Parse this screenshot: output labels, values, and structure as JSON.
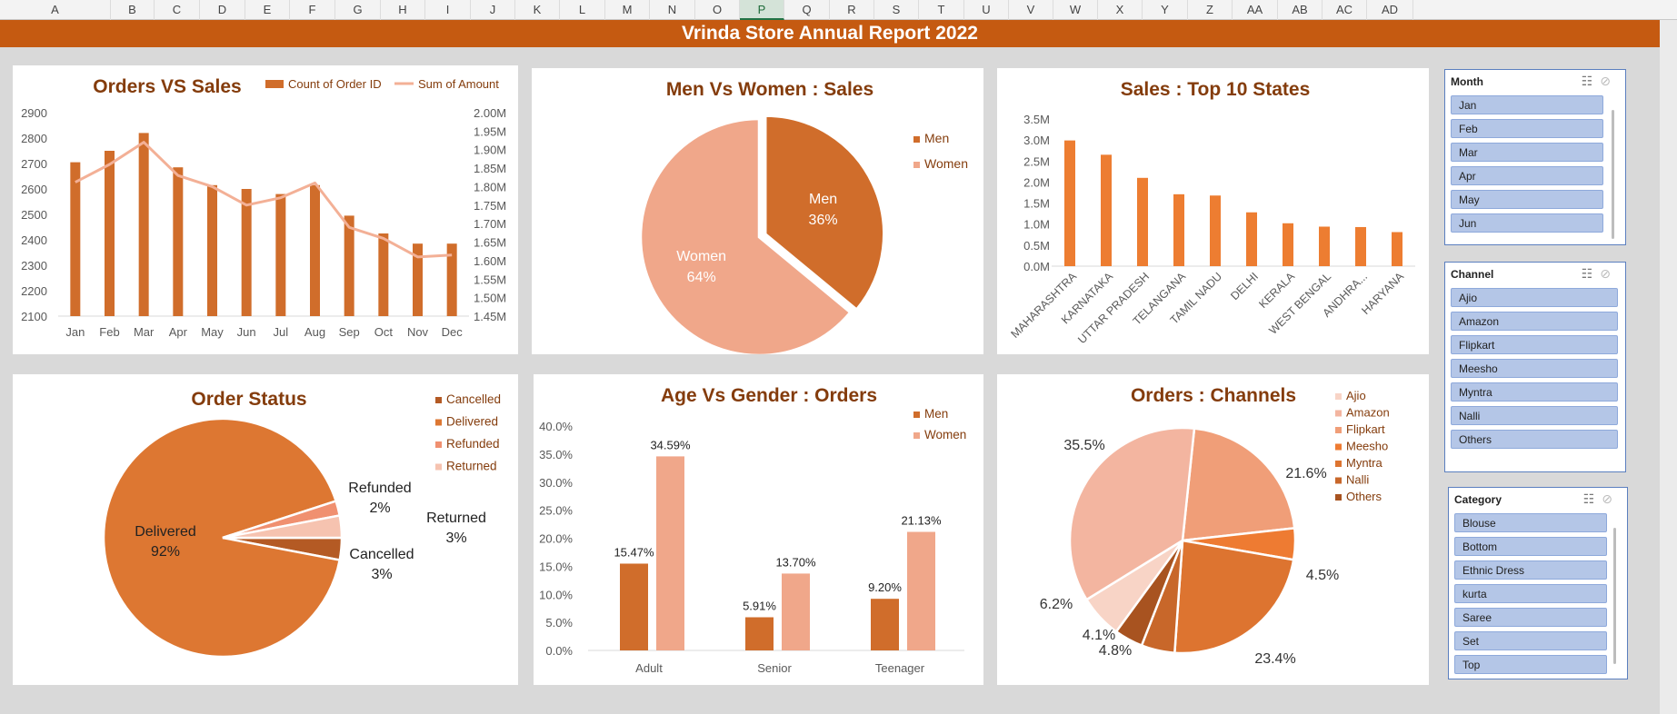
{
  "columns": [
    "A",
    "B",
    "C",
    "D",
    "E",
    "F",
    "G",
    "H",
    "I",
    "J",
    "K",
    "L",
    "M",
    "N",
    "O",
    "P",
    "Q",
    "R",
    "S",
    "T",
    "U",
    "V",
    "W",
    "X",
    "Y",
    "Z",
    "AA",
    "AB",
    "AC",
    "AD"
  ],
  "active_column": "P",
  "title": "Vrinda Store Annual Report 2022",
  "theme": {
    "orange": "#d06d2b",
    "light": "#f0a78a",
    "line": "#f3b096",
    "text_title": "#843c0c"
  },
  "chart_data": [
    {
      "type": "bar",
      "title": "Orders VS Sales",
      "categories": [
        "Jan",
        "Feb",
        "Mar",
        "Apr",
        "May",
        "Jun",
        "Jul",
        "Aug",
        "Sep",
        "Oct",
        "Nov",
        "Dec"
      ],
      "series": [
        {
          "name": "Count of Order ID",
          "type": "bar",
          "values": [
            2705,
            2750,
            2820,
            2685,
            2615,
            2600,
            2580,
            2615,
            2495,
            2425,
            2385,
            2385
          ]
        },
        {
          "name": "Sum of Amount",
          "type": "line",
          "axis": "secondary",
          "values": [
            1.812,
            1.86,
            1.92,
            1.83,
            1.8,
            1.75,
            1.77,
            1.81,
            1.69,
            1.66,
            1.61,
            1.615
          ]
        }
      ],
      "y_ticks": [
        "2100",
        "2200",
        "2300",
        "2400",
        "2500",
        "2600",
        "2700",
        "2800",
        "2900"
      ],
      "y2_ticks": [
        "1.45M",
        "1.50M",
        "1.55M",
        "1.60M",
        "1.65M",
        "1.70M",
        "1.75M",
        "1.80M",
        "1.85M",
        "1.90M",
        "1.95M",
        "2.00M"
      ],
      "ylim": [
        2100,
        2900
      ],
      "y2lim": [
        1.45,
        2.0
      ],
      "legend": "top-right"
    },
    {
      "type": "pie",
      "title": "Men Vs Women : Sales",
      "slices": [
        {
          "label": "Men",
          "value": 36,
          "display": "36%"
        },
        {
          "label": "Women",
          "value": 64,
          "display": "64%"
        }
      ],
      "legend": [
        "Men",
        "Women"
      ]
    },
    {
      "type": "bar",
      "title": "Sales : Top 10 States",
      "categories": [
        "MAHARASHTRA",
        "KARNATAKA",
        "UTTAR PRADESH",
        "TELANGANA",
        "TAMIL NADU",
        "DELHI",
        "KERALA",
        "WEST BENGAL",
        "ANDHRA...",
        "HARYANA"
      ],
      "values": [
        2.99,
        2.65,
        2.1,
        1.71,
        1.68,
        1.28,
        1.02,
        0.94,
        0.93,
        0.81
      ],
      "y_ticks": [
        "0.0M",
        "0.5M",
        "1.0M",
        "1.5M",
        "2.0M",
        "2.5M",
        "3.0M",
        "3.5M"
      ],
      "ylim": [
        0,
        3.5
      ]
    },
    {
      "type": "pie",
      "title": "Order Status",
      "slices": [
        {
          "label": "Cancelled",
          "value": 3,
          "display": "3%"
        },
        {
          "label": "Delivered",
          "value": 92,
          "display": "92%"
        },
        {
          "label": "Refunded",
          "value": 2,
          "display": "2%"
        },
        {
          "label": "Returned",
          "value": 3,
          "display": "3%"
        }
      ],
      "legend": [
        "Cancelled",
        "Delivered",
        "Refunded",
        "Returned"
      ]
    },
    {
      "type": "bar",
      "title": "Age Vs Gender : Orders",
      "categories": [
        "Adult",
        "Senior",
        "Teenager"
      ],
      "series": [
        {
          "name": "Men",
          "values": [
            15.47,
            5.91,
            9.2
          ],
          "labels": [
            "15.47%",
            "5.91%",
            "9.20%"
          ]
        },
        {
          "name": "Women",
          "values": [
            34.59,
            13.7,
            21.13
          ],
          "labels": [
            "34.59%",
            "13.70%",
            "21.13%"
          ]
        }
      ],
      "y_ticks": [
        "0.0%",
        "5.0%",
        "10.0%",
        "15.0%",
        "20.0%",
        "25.0%",
        "30.0%",
        "35.0%",
        "40.0%"
      ],
      "ylim": [
        0,
        40
      ],
      "legend": "top-right"
    },
    {
      "type": "pie",
      "title": "Orders : Channels",
      "slices": [
        {
          "label": "Ajio",
          "value": 6.2,
          "display": "6.2%"
        },
        {
          "label": "Amazon",
          "value": 35.5,
          "display": "35.5%"
        },
        {
          "label": "Flipkart",
          "value": 21.6,
          "display": "21.6%"
        },
        {
          "label": "Meesho",
          "value": 4.5,
          "display": "4.5%"
        },
        {
          "label": "Myntra",
          "value": 23.4,
          "display": "23.4%"
        },
        {
          "label": "Nalli",
          "value": 4.8,
          "display": "4.8%"
        },
        {
          "label": "Others",
          "value": 4.1,
          "display": "4.1%"
        }
      ],
      "legend": [
        "Ajio",
        "Amazon",
        "Flipkart",
        "Meesho",
        "Myntra",
        "Nalli",
        "Others"
      ]
    }
  ],
  "slicers": {
    "month": {
      "title": "Month",
      "items": [
        "Jan",
        "Feb",
        "Mar",
        "Apr",
        "May",
        "Jun"
      ]
    },
    "channel": {
      "title": "Channel",
      "items": [
        "Ajio",
        "Amazon",
        "Flipkart",
        "Meesho",
        "Myntra",
        "Nalli",
        "Others"
      ]
    },
    "category": {
      "title": "Category",
      "items": [
        "Blouse",
        "Bottom",
        "Ethnic Dress",
        "kurta",
        "Saree",
        "Set",
        "Top"
      ]
    }
  },
  "icons": {
    "multiselect": "multi-select-icon",
    "clear": "clear-filter-icon"
  }
}
